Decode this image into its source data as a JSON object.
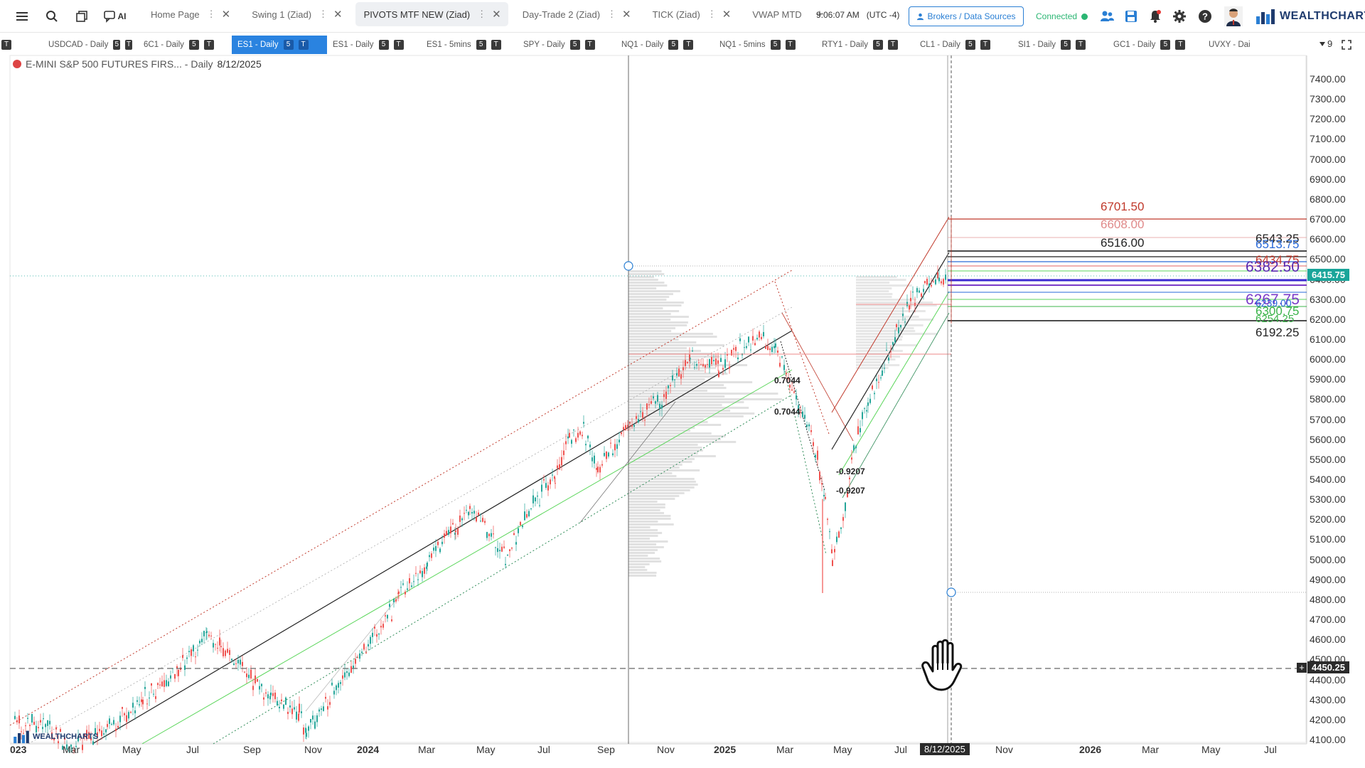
{
  "topbar": {
    "tabs": [
      {
        "label": "Home Page",
        "active": false,
        "closable": true
      },
      {
        "label": "Swing 1 (Ziad)",
        "active": false,
        "closable": true
      },
      {
        "label": "PIVOTS MTF NEW (Ziad)",
        "active": true,
        "closable": true
      },
      {
        "label": "Day-Trade 2 (Ziad)",
        "active": false,
        "closable": true
      },
      {
        "label": "TICK (Ziad)",
        "active": false,
        "closable": true
      },
      {
        "label": "VWAP MTD",
        "active": false,
        "closable": false
      }
    ],
    "ai_label": "AI",
    "add_tab": "+",
    "clock": "9:06:07 AM",
    "timezone": "(UTC -4)",
    "brokers_label": "Brokers / Data Sources",
    "status": "Connected",
    "logo_text": "WEALTHCHARTS",
    "status_color": "#2bb673",
    "accent_color": "#2a7fd4"
  },
  "symbols": [
    {
      "label": "USDCAD - Daily",
      "active": false
    },
    {
      "label": "6C1 - Daily",
      "active": false
    },
    {
      "label": "ES1 - Daily",
      "active": true
    },
    {
      "label": "ES1 - Daily",
      "active": false
    },
    {
      "label": "ES1 - 5mins",
      "active": false
    },
    {
      "label": "SPY - Daily",
      "active": false
    },
    {
      "label": "NQ1 - Daily",
      "active": false
    },
    {
      "label": "NQ1 - 5mins",
      "active": false
    },
    {
      "label": "RTY1 - Daily",
      "active": false
    },
    {
      "label": "CL1 - Daily",
      "active": false
    },
    {
      "label": "SI1 - Daily",
      "active": false
    },
    {
      "label": "GC1 - Daily",
      "active": false
    },
    {
      "label": "UVXY - Dai",
      "active": false
    }
  ],
  "symbol_badges": [
    "5",
    "T"
  ],
  "symbol_overflow": "9",
  "chart": {
    "title": "E-MINI S&P 500 FUTURES FIRS... - Daily",
    "date": "8/12/2025",
    "current_price": "6415.75",
    "current_price_color": "#1aa59a",
    "crosshair_price": "4450.25",
    "crosshair_date": "8/12/2025",
    "watermark": "WEALTHCHARTS",
    "pivot_labels": [
      {
        "text": "6701.50",
        "color": "#c0392b"
      },
      {
        "text": "6608.00",
        "color": "#e08a8a"
      },
      {
        "text": "6516.00",
        "color": "#222222"
      },
      {
        "text": "6543.25",
        "color": "#222222"
      },
      {
        "text": "6513.75",
        "color": "#2a6ad8"
      },
      {
        "text": "6434.75",
        "color": "#c0392b"
      },
      {
        "text": "6382.50",
        "color": "#5a2ab0"
      },
      {
        "text": "6267.75",
        "color": "#7a3ac8"
      },
      {
        "text": "6239.00",
        "color": "#2a6ad8"
      },
      {
        "text": "6300.75",
        "color": "#3cb44b"
      },
      {
        "text": "6254.25",
        "color": "#3cb44b"
      },
      {
        "text": "6192.25",
        "color": "#222222"
      }
    ],
    "fib_labels": [
      "0.7044",
      "0.7044",
      "-0.9207",
      "-0.9207"
    ],
    "price_axis": [
      "7400.00",
      "7300.00",
      "7200.00",
      "7100.00",
      "7000.00",
      "6900.00",
      "6800.00",
      "6700.00",
      "6600.00",
      "6500.00",
      "6400.00",
      "6300.00",
      "6200.00",
      "6100.00",
      "6000.00",
      "5900.00",
      "5800.00",
      "5700.00",
      "5600.00",
      "5500.00",
      "5400.00",
      "5300.00",
      "5200.00",
      "5100.00",
      "5000.00",
      "4900.00",
      "4800.00",
      "4700.00",
      "4600.00",
      "4500.00",
      "4400.00",
      "4300.00",
      "4200.00",
      "4100.00"
    ],
    "time_axis": [
      {
        "text": "023",
        "year": true
      },
      {
        "text": "Mar",
        "year": false
      },
      {
        "text": "May",
        "year": false
      },
      {
        "text": "Jul",
        "year": false
      },
      {
        "text": "Sep",
        "year": false
      },
      {
        "text": "Nov",
        "year": false
      },
      {
        "text": "2024",
        "year": true
      },
      {
        "text": "Mar",
        "year": false
      },
      {
        "text": "May",
        "year": false
      },
      {
        "text": "Jul",
        "year": false
      },
      {
        "text": "Sep",
        "year": false
      },
      {
        "text": "Nov",
        "year": false
      },
      {
        "text": "2025",
        "year": true
      },
      {
        "text": "Mar",
        "year": false
      },
      {
        "text": "May",
        "year": false
      },
      {
        "text": "Jul",
        "year": false
      },
      {
        "text": "Nov",
        "year": false
      },
      {
        "text": "2026",
        "year": true
      },
      {
        "text": "Mar",
        "year": false
      },
      {
        "text": "May",
        "year": false
      },
      {
        "text": "Jul",
        "year": false
      }
    ]
  }
}
